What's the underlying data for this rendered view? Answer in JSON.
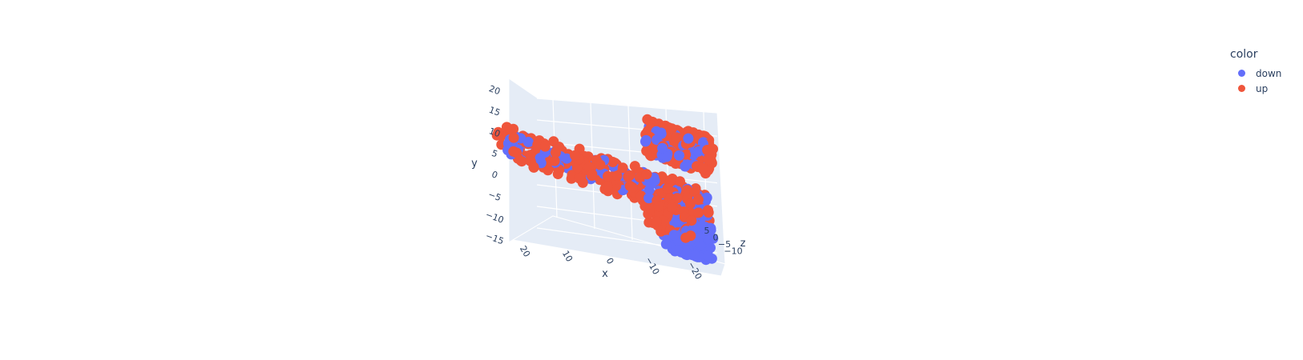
{
  "chart_data": {
    "type": "scatter",
    "dimensions": 3,
    "title": "",
    "axes": {
      "x": {
        "label": "x",
        "ticks": [
          "20",
          "10",
          "0",
          "−10",
          "−20"
        ]
      },
      "y": {
        "label": "y",
        "ticks": [
          "20",
          "15",
          "10",
          "5",
          "0",
          "−5",
          "−10",
          "−15"
        ]
      },
      "z": {
        "label": "z",
        "ticks": [
          "5",
          "0",
          "−5",
          "−10"
        ]
      }
    },
    "legend": {
      "title": "color",
      "placement": "top-right"
    },
    "series": [
      {
        "name": "down",
        "color": "#636efa",
        "clusters": [
          {
            "x_range": [
              -25,
              25
            ],
            "y_range": [
              -3,
              3
            ],
            "count": 140
          },
          {
            "x_range": [
              -25,
              -15
            ],
            "y_range": [
              -14,
              -5
            ],
            "count": 220
          },
          {
            "x_range": [
              -25,
              -10
            ],
            "y_range": [
              8,
              16
            ],
            "count": 60
          }
        ]
      },
      {
        "name": "up",
        "color": "#ef553b",
        "clusters": [
          {
            "x_range": [
              -25,
              25
            ],
            "y_range": [
              -4,
              4
            ],
            "count": 220
          },
          {
            "x_range": [
              -25,
              -10
            ],
            "y_range": [
              8,
              17
            ],
            "count": 260
          },
          {
            "x_range": [
              -22,
              -10
            ],
            "y_range": [
              -10,
              -3
            ],
            "count": 90
          }
        ]
      }
    ]
  }
}
